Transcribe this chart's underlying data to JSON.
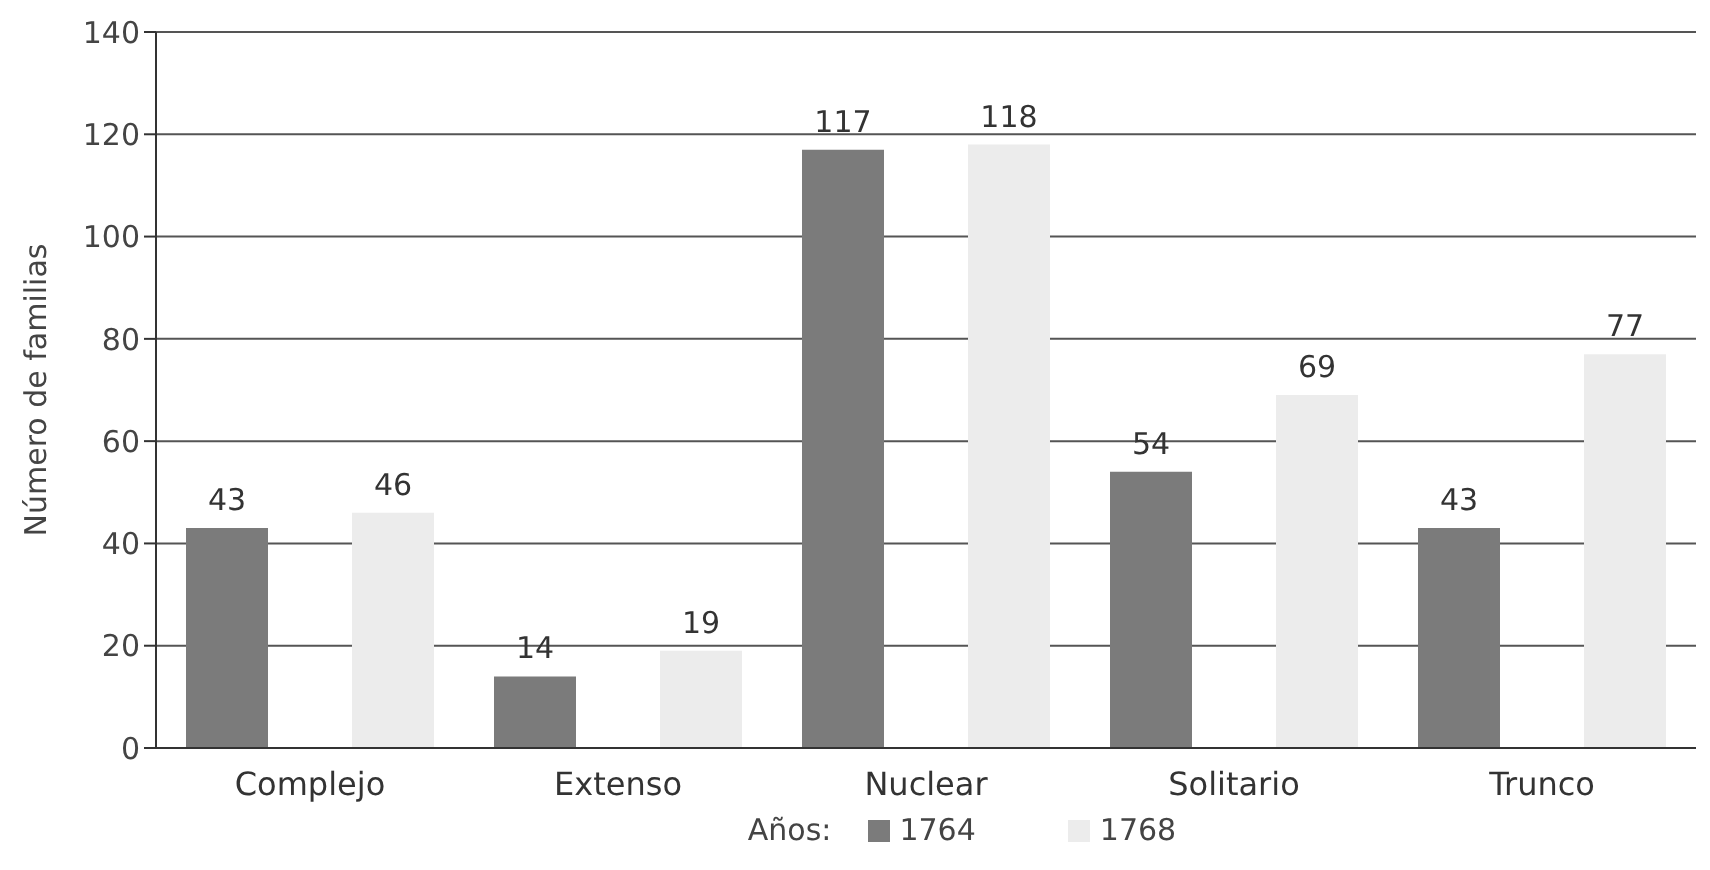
{
  "chart_data": {
    "type": "bar",
    "categories": [
      "Complejo",
      "Extenso",
      "Nuclear",
      "Solitario",
      "Trunco"
    ],
    "series": [
      {
        "name": "1764",
        "color": "#7b7b7b",
        "values": [
          43,
          14,
          117,
          54,
          43
        ]
      },
      {
        "name": "1768",
        "color": "#ececec",
        "values": [
          46,
          19,
          118,
          69,
          77
        ]
      }
    ],
    "ylabel": "Número de familias",
    "legend_title": "Años:",
    "ylim": [
      0,
      140
    ],
    "yticks": [
      0,
      20,
      40,
      60,
      80,
      100,
      120,
      140
    ],
    "grid": "y",
    "legend": "bottom",
    "data_labels": true
  }
}
